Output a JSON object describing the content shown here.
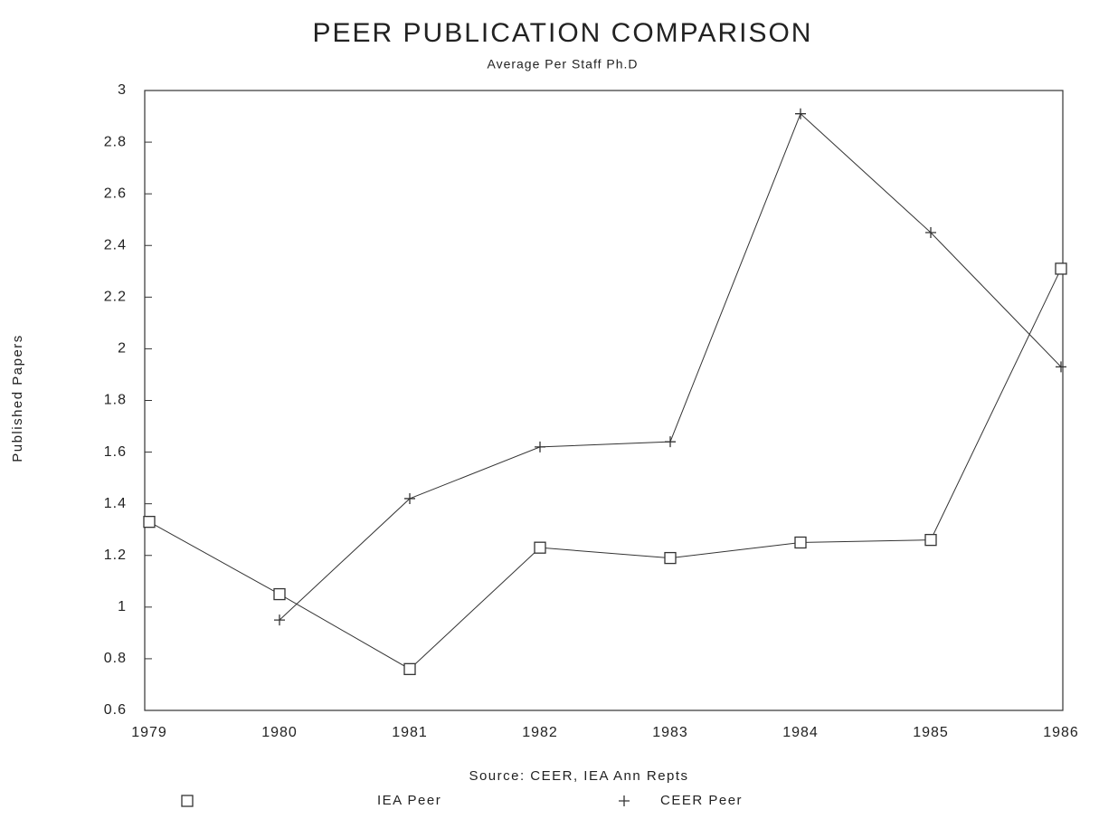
{
  "chart_data": {
    "type": "line",
    "title": "PEER PUBLICATION COMPARISON",
    "subtitle": "Average Per Staff Ph.D",
    "y_label": "Published Papers",
    "x_label": "Source: CEER, IEA Ann Repts",
    "categories": [
      "1979",
      "1980",
      "1981",
      "1982",
      "1983",
      "1984",
      "1985",
      "1986"
    ],
    "series": [
      {
        "name": "IEA Peer",
        "color": "#333333",
        "marker": "square",
        "values": [
          1.33,
          1.05,
          0.76,
          1.23,
          1.19,
          1.25,
          1.26,
          2.31
        ]
      },
      {
        "name": "CEER Peer",
        "color": "#333333",
        "marker": "plus",
        "values": [
          null,
          0.95,
          1.42,
          1.62,
          1.64,
          2.91,
          2.45,
          1.93
        ]
      }
    ],
    "ylim": [
      0.6,
      3
    ],
    "yticks": [
      0.6,
      0.8,
      1,
      1.2,
      1.4,
      1.6,
      1.8,
      2,
      2.2,
      2.4,
      2.6,
      2.8,
      3
    ],
    "legend": "bottom"
  }
}
